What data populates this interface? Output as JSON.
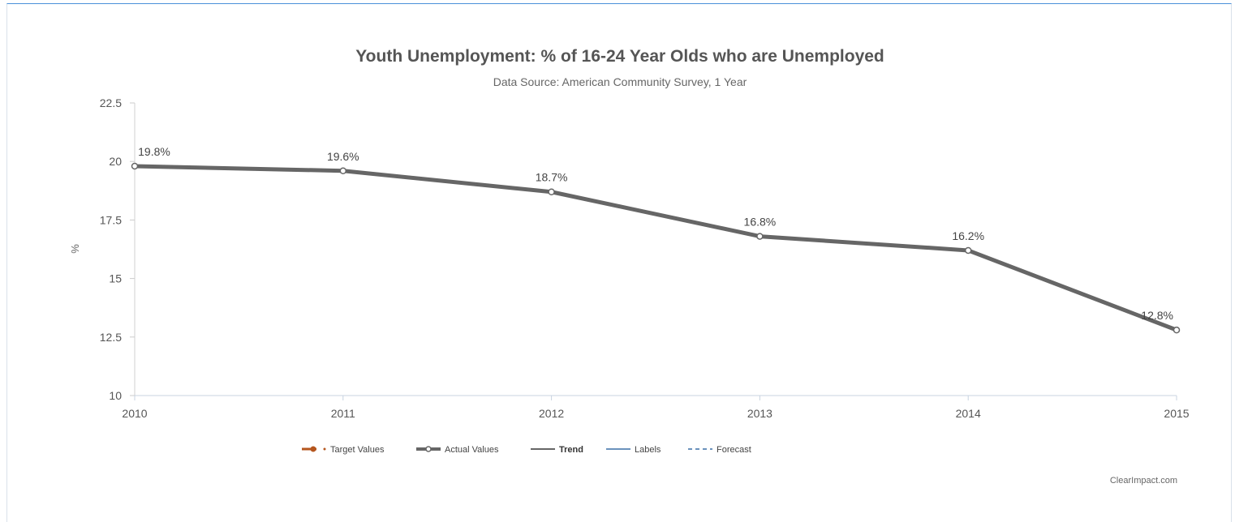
{
  "chart_data": {
    "type": "line",
    "title": "Youth Unemployment: % of 16-24 Year Olds who are Unemployed",
    "subtitle": "Data Source: American Community Survey, 1 Year",
    "xlabel": "",
    "ylabel": "%",
    "categories": [
      "2010",
      "2011",
      "2012",
      "2013",
      "2014",
      "2015"
    ],
    "ylim": [
      10,
      22.5
    ],
    "yticks": [
      "10",
      "12.5",
      "15",
      "17.5",
      "20",
      "22.5"
    ],
    "series": [
      {
        "name": "Actual Values",
        "values": [
          19.8,
          19.6,
          18.7,
          16.8,
          16.2,
          12.8
        ],
        "data_labels": [
          "19.8%",
          "19.6%",
          "18.7%",
          "16.8%",
          "16.2%",
          "12.8%"
        ],
        "color": "#666666"
      }
    ],
    "legend": {
      "position": "bottom-center",
      "items": [
        {
          "label": "Target Values",
          "color": "#b5561e",
          "style": "line-dot"
        },
        {
          "label": "Actual Values",
          "color": "#666666",
          "style": "line-circle"
        },
        {
          "label": "Trend",
          "color": "#333333",
          "style": "line"
        },
        {
          "label": "Labels",
          "color": "#3a6ea5",
          "style": "line"
        },
        {
          "label": "Forecast",
          "color": "#3a6ea5",
          "style": "dashed"
        }
      ]
    },
    "credit": "ClearImpact.com",
    "grid": false
  }
}
